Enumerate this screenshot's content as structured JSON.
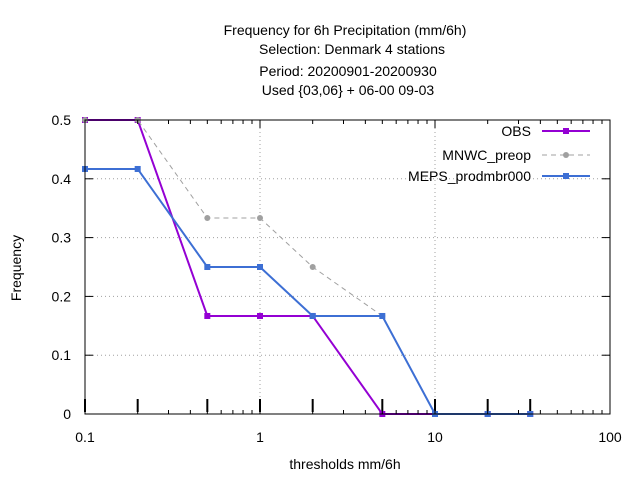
{
  "chart_data": {
    "type": "line",
    "title_lines": [
      "Frequency  for 6h Precipitation (mm/6h)",
      "Selection: Denmark      4 stations",
      "Period: 20200901-20200930",
      "Used {03,06} + 06-00 09-03"
    ],
    "xlabel": "thresholds mm/6h",
    "ylabel": "Frequency",
    "xscale": "log",
    "xlim": [
      0.1,
      100
    ],
    "ylim": [
      0,
      0.5
    ],
    "xticks": [
      0.1,
      1,
      10,
      100
    ],
    "xtick_labels": [
      "0.1",
      "1",
      "10",
      "100"
    ],
    "yticks": [
      0,
      0.1,
      0.2,
      0.3,
      0.4,
      0.5
    ],
    "ytick_labels": [
      "0",
      "0.1",
      "0.2",
      "0.3",
      "0.4",
      "0.5"
    ],
    "threshold_markers": [
      0.1,
      0.2,
      0.5,
      1,
      2,
      5,
      10,
      20,
      35
    ],
    "grid": true,
    "legend_position": "top-right",
    "series": [
      {
        "name": "OBS",
        "color": "#9400d3",
        "dash": "solid",
        "marker": "square",
        "x": [
          0.1,
          0.2,
          0.5,
          1,
          2,
          5,
          10,
          20,
          35
        ],
        "y": [
          0.5,
          0.5,
          0.1667,
          0.1667,
          0.1667,
          0,
          0,
          0,
          0
        ]
      },
      {
        "name": "MNWC_preop",
        "color": "#a0a0a0",
        "dash": "dashed",
        "marker": "circle",
        "x": [
          0.1,
          0.2,
          0.5,
          1,
          2,
          5
        ],
        "y": [
          0.5,
          0.5,
          0.3333,
          0.3333,
          0.25,
          0.1667
        ]
      },
      {
        "name": "MEPS_prodmbr000",
        "color": "#3d6fd4",
        "dash": "solid",
        "marker": "square",
        "x": [
          0.1,
          0.2,
          0.5,
          1,
          2,
          5,
          10,
          20,
          35
        ],
        "y": [
          0.4167,
          0.4167,
          0.25,
          0.25,
          0.1667,
          0.1667,
          0,
          0,
          0
        ]
      }
    ]
  }
}
